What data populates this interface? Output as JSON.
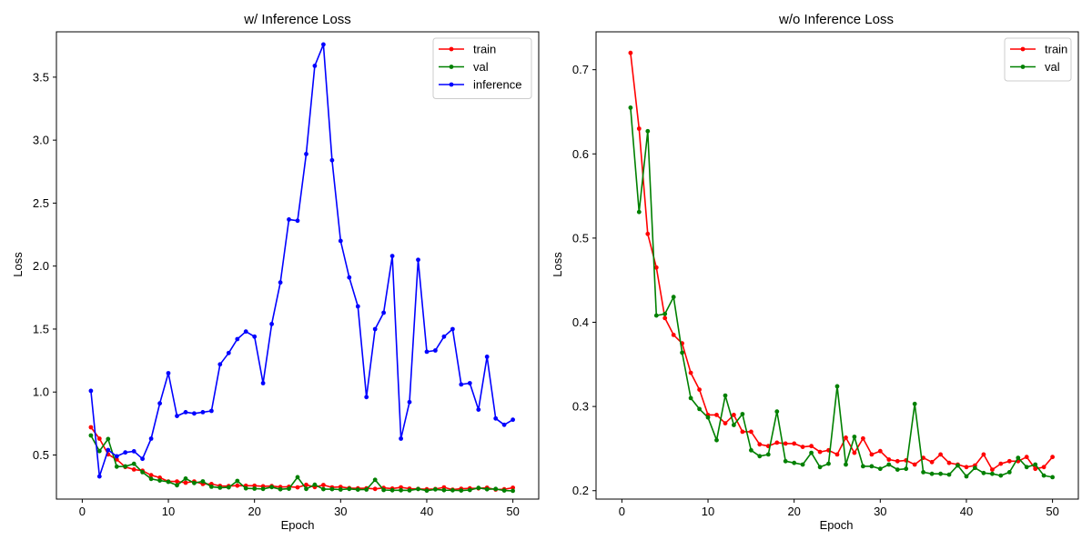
{
  "chart_data": [
    {
      "type": "line",
      "title": "w/ Inference Loss",
      "xlabel": "Epoch",
      "ylabel": "Loss",
      "xlim": [
        -3,
        53
      ],
      "ylim": [
        0.15,
        3.86
      ],
      "xticks": [
        0,
        10,
        20,
        30,
        40,
        50
      ],
      "yticks": [
        0.5,
        1.0,
        1.5,
        2.0,
        2.5,
        3.0,
        3.5
      ],
      "xtick_labels": [
        "0",
        "10",
        "20",
        "30",
        "40",
        "50"
      ],
      "ytick_labels": [
        "0.5",
        "1.0",
        "1.5",
        "2.0",
        "2.5",
        "3.0",
        "3.5"
      ],
      "grid": false,
      "legend_position": "upper right",
      "x": [
        1,
        2,
        3,
        4,
        5,
        6,
        7,
        8,
        9,
        10,
        11,
        12,
        13,
        14,
        15,
        16,
        17,
        18,
        19,
        20,
        21,
        22,
        23,
        24,
        25,
        26,
        27,
        28,
        29,
        30,
        31,
        32,
        33,
        34,
        35,
        36,
        37,
        38,
        39,
        40,
        41,
        42,
        43,
        44,
        45,
        46,
        47,
        48,
        49,
        50
      ],
      "series": [
        {
          "name": "train",
          "color": "#ff0000",
          "values": [
            0.72,
            0.63,
            0.505,
            0.465,
            0.405,
            0.385,
            0.375,
            0.34,
            0.32,
            0.29,
            0.29,
            0.28,
            0.29,
            0.27,
            0.27,
            0.255,
            0.253,
            0.257,
            0.256,
            0.256,
            0.252,
            0.253,
            0.246,
            0.248,
            0.243,
            0.263,
            0.245,
            0.262,
            0.243,
            0.247,
            0.237,
            0.235,
            0.236,
            0.231,
            0.239,
            0.234,
            0.243,
            0.233,
            0.231,
            0.228,
            0.23,
            0.243,
            0.225,
            0.232,
            0.235,
            0.235,
            0.24,
            0.226,
            0.228,
            0.24
          ]
        },
        {
          "name": "val",
          "color": "#008000",
          "values": [
            0.655,
            0.531,
            0.627,
            0.408,
            0.41,
            0.43,
            0.364,
            0.31,
            0.297,
            0.287,
            0.26,
            0.313,
            0.278,
            0.291,
            0.248,
            0.241,
            0.243,
            0.294,
            0.235,
            0.233,
            0.231,
            0.245,
            0.228,
            0.232,
            0.324,
            0.231,
            0.264,
            0.229,
            0.229,
            0.226,
            0.231,
            0.225,
            0.226,
            0.303,
            0.222,
            0.22,
            0.22,
            0.219,
            0.23,
            0.217,
            0.227,
            0.221,
            0.22,
            0.218,
            0.222,
            0.239,
            0.228,
            0.231,
            0.218,
            0.216
          ]
        },
        {
          "name": "inference",
          "color": "#0000ff",
          "values": [
            1.01,
            0.33,
            0.54,
            0.49,
            0.52,
            0.53,
            0.47,
            0.63,
            0.91,
            1.15,
            0.81,
            0.84,
            0.83,
            0.84,
            0.85,
            1.22,
            1.31,
            1.42,
            1.48,
            1.44,
            1.07,
            1.54,
            1.87,
            2.37,
            2.36,
            2.89,
            3.59,
            3.76,
            2.84,
            2.2,
            1.91,
            1.68,
            0.96,
            1.5,
            1.63,
            2.08,
            0.63,
            0.92,
            2.05,
            1.32,
            1.33,
            1.44,
            1.5,
            1.06,
            1.07,
            0.86,
            1.28,
            0.79,
            0.74,
            0.78
          ]
        }
      ]
    },
    {
      "type": "line",
      "title": "w/o Inference Loss",
      "xlabel": "Epoch",
      "ylabel": "Loss",
      "xlim": [
        -3,
        53
      ],
      "ylim": [
        0.19,
        0.745
      ],
      "xticks": [
        0,
        10,
        20,
        30,
        40,
        50
      ],
      "yticks": [
        0.2,
        0.3,
        0.4,
        0.5,
        0.6,
        0.7
      ],
      "xtick_labels": [
        "0",
        "10",
        "20",
        "30",
        "40",
        "50"
      ],
      "ytick_labels": [
        "0.2",
        "0.3",
        "0.4",
        "0.5",
        "0.6",
        "0.7"
      ],
      "grid": false,
      "legend_position": "upper right",
      "x": [
        1,
        2,
        3,
        4,
        5,
        6,
        7,
        8,
        9,
        10,
        11,
        12,
        13,
        14,
        15,
        16,
        17,
        18,
        19,
        20,
        21,
        22,
        23,
        24,
        25,
        26,
        27,
        28,
        29,
        30,
        31,
        32,
        33,
        34,
        35,
        36,
        37,
        38,
        39,
        40,
        41,
        42,
        43,
        44,
        45,
        46,
        47,
        48,
        49,
        50
      ],
      "series": [
        {
          "name": "train",
          "color": "#ff0000",
          "values": [
            0.72,
            0.63,
            0.505,
            0.465,
            0.405,
            0.385,
            0.375,
            0.34,
            0.32,
            0.29,
            0.29,
            0.28,
            0.29,
            0.27,
            0.27,
            0.255,
            0.253,
            0.257,
            0.256,
            0.256,
            0.252,
            0.253,
            0.246,
            0.248,
            0.243,
            0.263,
            0.245,
            0.262,
            0.243,
            0.247,
            0.237,
            0.235,
            0.236,
            0.231,
            0.239,
            0.234,
            0.243,
            0.233,
            0.231,
            0.228,
            0.23,
            0.243,
            0.225,
            0.232,
            0.235,
            0.235,
            0.24,
            0.226,
            0.228,
            0.24
          ]
        },
        {
          "name": "val",
          "color": "#008000",
          "values": [
            0.655,
            0.531,
            0.627,
            0.408,
            0.41,
            0.43,
            0.364,
            0.31,
            0.297,
            0.287,
            0.26,
            0.313,
            0.278,
            0.291,
            0.248,
            0.241,
            0.243,
            0.294,
            0.235,
            0.233,
            0.231,
            0.245,
            0.228,
            0.232,
            0.324,
            0.231,
            0.264,
            0.229,
            0.229,
            0.226,
            0.231,
            0.225,
            0.226,
            0.303,
            0.222,
            0.22,
            0.22,
            0.219,
            0.23,
            0.217,
            0.227,
            0.221,
            0.22,
            0.218,
            0.222,
            0.239,
            0.228,
            0.231,
            0.218,
            0.216
          ]
        }
      ]
    }
  ]
}
